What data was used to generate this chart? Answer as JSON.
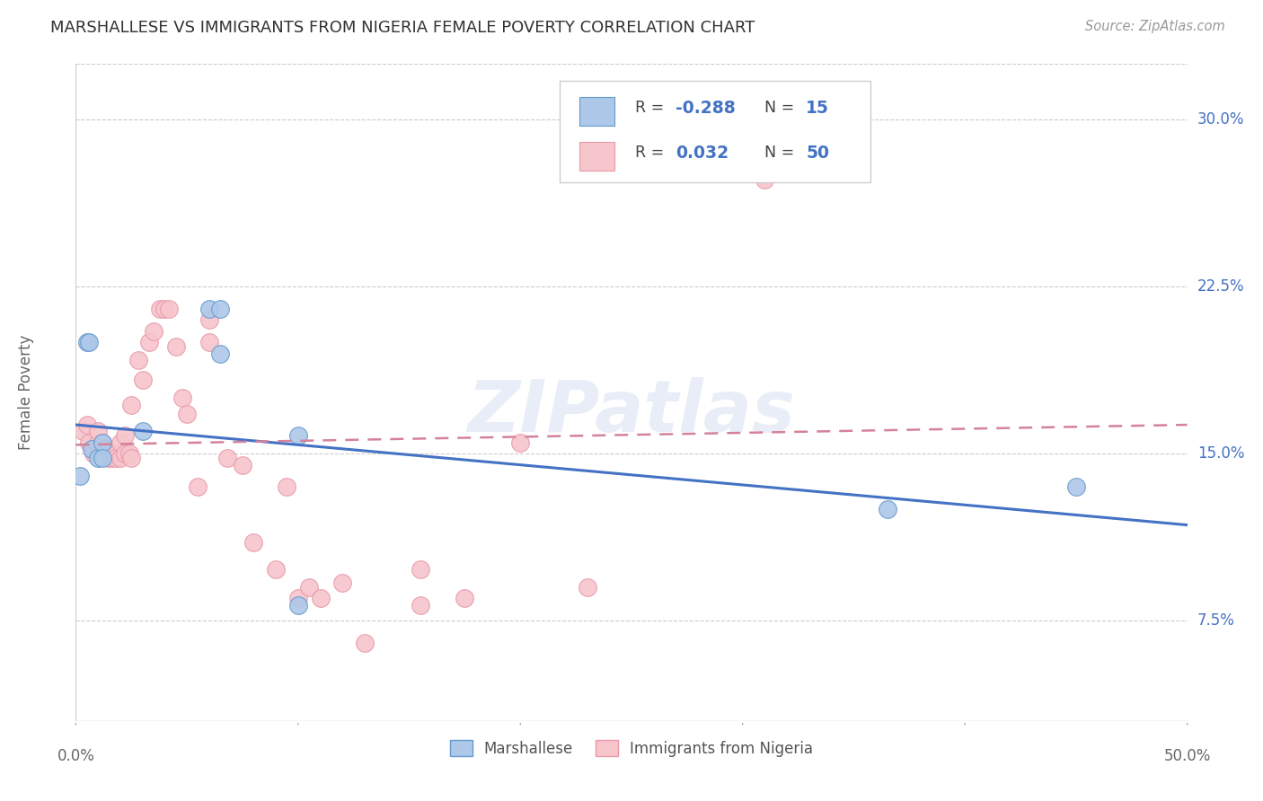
{
  "title": "MARSHALLESE VS IMMIGRANTS FROM NIGERIA FEMALE POVERTY CORRELATION CHART",
  "source": "Source: ZipAtlas.com",
  "ylabel": "Female Poverty",
  "yticks": [
    0.075,
    0.15,
    0.225,
    0.3
  ],
  "ytick_labels": [
    "7.5%",
    "15.0%",
    "22.5%",
    "30.0%"
  ],
  "xlim": [
    0.0,
    0.5
  ],
  "ylim": [
    0.03,
    0.325
  ],
  "watermark": "ZIPatlas",
  "marshallese_x": [
    0.002,
    0.005,
    0.006,
    0.007,
    0.01,
    0.012,
    0.012,
    0.03,
    0.06,
    0.065,
    0.065,
    0.1,
    0.1,
    0.365,
    0.45
  ],
  "marshallese_y": [
    0.14,
    0.2,
    0.2,
    0.152,
    0.148,
    0.155,
    0.148,
    0.16,
    0.215,
    0.215,
    0.195,
    0.158,
    0.082,
    0.125,
    0.135
  ],
  "nigeria_x": [
    0.003,
    0.005,
    0.006,
    0.008,
    0.01,
    0.01,
    0.012,
    0.013,
    0.014,
    0.015,
    0.016,
    0.018,
    0.018,
    0.02,
    0.02,
    0.022,
    0.022,
    0.024,
    0.025,
    0.025,
    0.028,
    0.03,
    0.033,
    0.035,
    0.038,
    0.04,
    0.042,
    0.045,
    0.048,
    0.05,
    0.055,
    0.06,
    0.068,
    0.075,
    0.08,
    0.09,
    0.095,
    0.1,
    0.105,
    0.11,
    0.12,
    0.13,
    0.155,
    0.175,
    0.2,
    0.23,
    0.265,
    0.31,
    0.155,
    0.06
  ],
  "nigeria_y": [
    0.16,
    0.163,
    0.155,
    0.15,
    0.155,
    0.16,
    0.155,
    0.152,
    0.15,
    0.148,
    0.148,
    0.15,
    0.148,
    0.155,
    0.148,
    0.158,
    0.15,
    0.15,
    0.172,
    0.148,
    0.192,
    0.183,
    0.2,
    0.205,
    0.215,
    0.215,
    0.215,
    0.198,
    0.175,
    0.168,
    0.135,
    0.2,
    0.148,
    0.145,
    0.11,
    0.098,
    0.135,
    0.085,
    0.09,
    0.085,
    0.092,
    0.065,
    0.098,
    0.085,
    0.155,
    0.09,
    0.295,
    0.273,
    0.082,
    0.21
  ],
  "marshallese_color": "#adc8e8",
  "marshallese_edge": "#6699cc",
  "nigeria_color": "#f7c5cc",
  "nigeria_edge": "#e899a8",
  "blue_line_color": "#4472c4",
  "pink_line_color": "#d4829a",
  "blue_line_start_y": 0.163,
  "blue_line_end_y": 0.118,
  "pink_line_start_y": 0.154,
  "pink_line_end_y": 0.163,
  "legend_label1": "Marshallese",
  "legend_label2": "Immigrants from Nigeria",
  "background_color": "#ffffff",
  "grid_color": "#cccccc"
}
